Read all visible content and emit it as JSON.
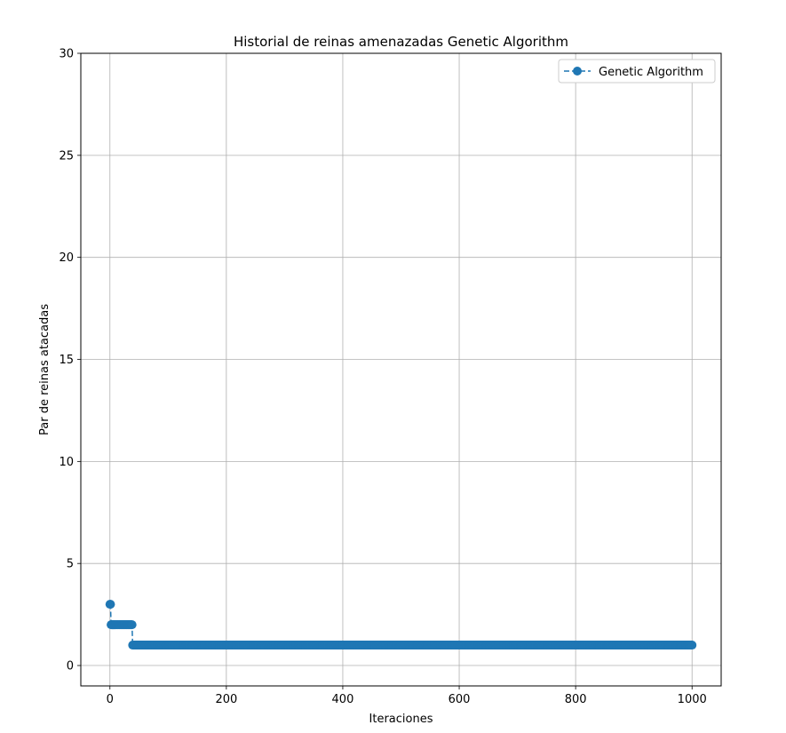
{
  "chart_data": {
    "type": "line",
    "title": "Historial de reinas amenazadas Genetic Algorithm",
    "xlabel": "Iteraciones",
    "ylabel": "Par de reinas atacadas",
    "xlim": [
      -50,
      1050
    ],
    "ylim": [
      -1,
      30
    ],
    "xticks": [
      0,
      200,
      400,
      600,
      800,
      1000
    ],
    "yticks": [
      0,
      5,
      10,
      15,
      20,
      25,
      30
    ],
    "grid": true,
    "legend_position": "top-right",
    "series": [
      {
        "name": "Genetic Algorithm",
        "color": "#1f77b4",
        "line_style": "dashed",
        "marker": "circle",
        "segments": [
          {
            "x_start": 0,
            "x_end": 1,
            "y": 3
          },
          {
            "x_start": 2,
            "x_end": 38,
            "y": 2
          },
          {
            "x_start": 39,
            "x_end": 1000,
            "y": 1
          }
        ]
      }
    ]
  }
}
